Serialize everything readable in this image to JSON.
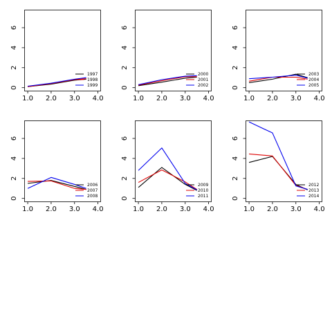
{
  "figure": {
    "xticks": [
      "1.0",
      "2.0",
      "3.0",
      "4.0"
    ],
    "yticks": [
      "0",
      "2",
      "4",
      "6"
    ]
  },
  "chart_data": [
    {
      "type": "line",
      "x": [
        1,
        2,
        3,
        3.5
      ],
      "xlim": [
        0.85,
        4.1
      ],
      "ylim": [
        -0.3,
        7.8
      ],
      "grid": false,
      "legend_position": "bottom-right",
      "series": [
        {
          "name": "1997",
          "color": "#000000",
          "values": [
            0.1,
            0.35,
            0.75,
            0.85
          ]
        },
        {
          "name": "1998",
          "color": "#dd0000",
          "values": [
            0.1,
            0.4,
            0.8,
            0.9
          ]
        },
        {
          "name": "1999",
          "color": "#0000ee",
          "values": [
            0.15,
            0.45,
            0.85,
            1.0
          ]
        }
      ]
    },
    {
      "type": "line",
      "x": [
        1,
        2,
        3,
        3.5
      ],
      "xlim": [
        0.85,
        4.1
      ],
      "ylim": [
        -0.3,
        7.8
      ],
      "grid": false,
      "legend_position": "bottom-right",
      "series": [
        {
          "name": "2000",
          "color": "#000000",
          "values": [
            0.2,
            0.55,
            0.95,
            1.05
          ]
        },
        {
          "name": "2001",
          "color": "#dd0000",
          "values": [
            0.25,
            0.7,
            1.1,
            1.1
          ]
        },
        {
          "name": "2002",
          "color": "#0000ee",
          "values": [
            0.3,
            0.8,
            1.15,
            1.2
          ]
        }
      ]
    },
    {
      "type": "line",
      "x": [
        1,
        2,
        3,
        3.5
      ],
      "xlim": [
        0.85,
        4.1
      ],
      "ylim": [
        -0.3,
        7.8
      ],
      "grid": false,
      "legend_position": "bottom-right",
      "series": [
        {
          "name": "2003",
          "color": "#000000",
          "values": [
            0.5,
            0.85,
            1.35,
            1.0
          ]
        },
        {
          "name": "2004",
          "color": "#dd0000",
          "values": [
            0.65,
            1.05,
            1.05,
            0.85
          ]
        },
        {
          "name": "2005",
          "color": "#0000ee",
          "values": [
            0.9,
            1.05,
            1.25,
            0.95
          ]
        }
      ]
    },
    {
      "type": "line",
      "x": [
        1,
        2,
        3,
        3.5
      ],
      "xlim": [
        0.85,
        4.1
      ],
      "ylim": [
        -0.3,
        7.8
      ],
      "grid": false,
      "legend_position": "bottom-right",
      "series": [
        {
          "name": "2006",
          "color": "#000000",
          "values": [
            1.5,
            1.8,
            1.2,
            0.9
          ]
        },
        {
          "name": "2007",
          "color": "#dd0000",
          "values": [
            1.7,
            1.75,
            1.0,
            0.9
          ]
        },
        {
          "name": "2008",
          "color": "#0000ee",
          "values": [
            1.0,
            2.1,
            1.4,
            1.0
          ]
        }
      ]
    },
    {
      "type": "line",
      "x": [
        1,
        2,
        3,
        3.5
      ],
      "xlim": [
        0.85,
        4.1
      ],
      "ylim": [
        -0.3,
        7.8
      ],
      "grid": false,
      "legend_position": "bottom-right",
      "series": [
        {
          "name": "2009",
          "color": "#000000",
          "values": [
            1.1,
            3.1,
            1.4,
            0.8
          ]
        },
        {
          "name": "2010",
          "color": "#dd0000",
          "values": [
            1.6,
            2.85,
            1.65,
            0.9
          ]
        },
        {
          "name": "2011",
          "color": "#0000ee",
          "values": [
            2.8,
            5.05,
            1.5,
            0.85
          ]
        }
      ]
    },
    {
      "type": "line",
      "x": [
        1,
        2,
        3,
        3.5
      ],
      "xlim": [
        0.85,
        4.1
      ],
      "ylim": [
        -0.3,
        7.8
      ],
      "grid": false,
      "legend_position": "bottom-right",
      "series": [
        {
          "name": "2012",
          "color": "#000000",
          "values": [
            3.6,
            4.2,
            1.4,
            0.85
          ]
        },
        {
          "name": "2013",
          "color": "#dd0000",
          "values": [
            4.45,
            4.25,
            1.3,
            0.9
          ]
        },
        {
          "name": "2014",
          "color": "#0000ee",
          "values": [
            7.65,
            6.55,
            1.25,
            0.9
          ]
        }
      ]
    }
  ]
}
